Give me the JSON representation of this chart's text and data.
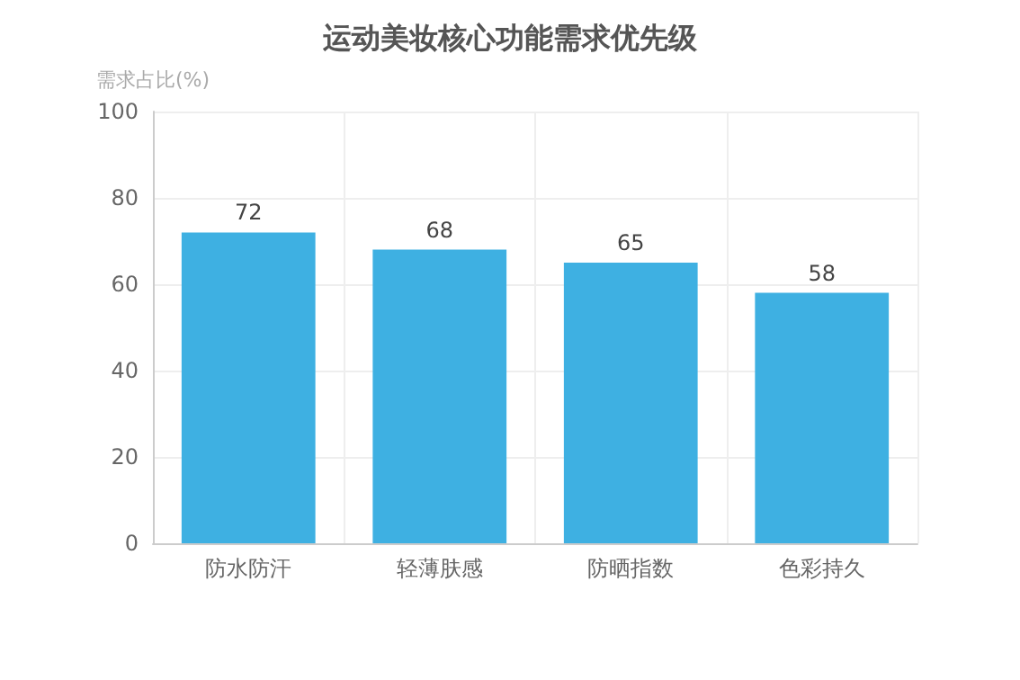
{
  "chart_data": {
    "type": "bar",
    "title": "运动美妆核心功能需求优先级",
    "ylabel": "需求占比(%)",
    "categories": [
      "防水防汗",
      "轻薄肤感",
      "防晒指数",
      "色彩持久"
    ],
    "values": [
      72,
      68,
      65,
      58
    ],
    "color": "#3eb0e2",
    "ylim": [
      0,
      100
    ],
    "yticks": [
      0,
      20,
      40,
      60,
      80,
      100
    ],
    "grid": true,
    "data_labels": true
  }
}
